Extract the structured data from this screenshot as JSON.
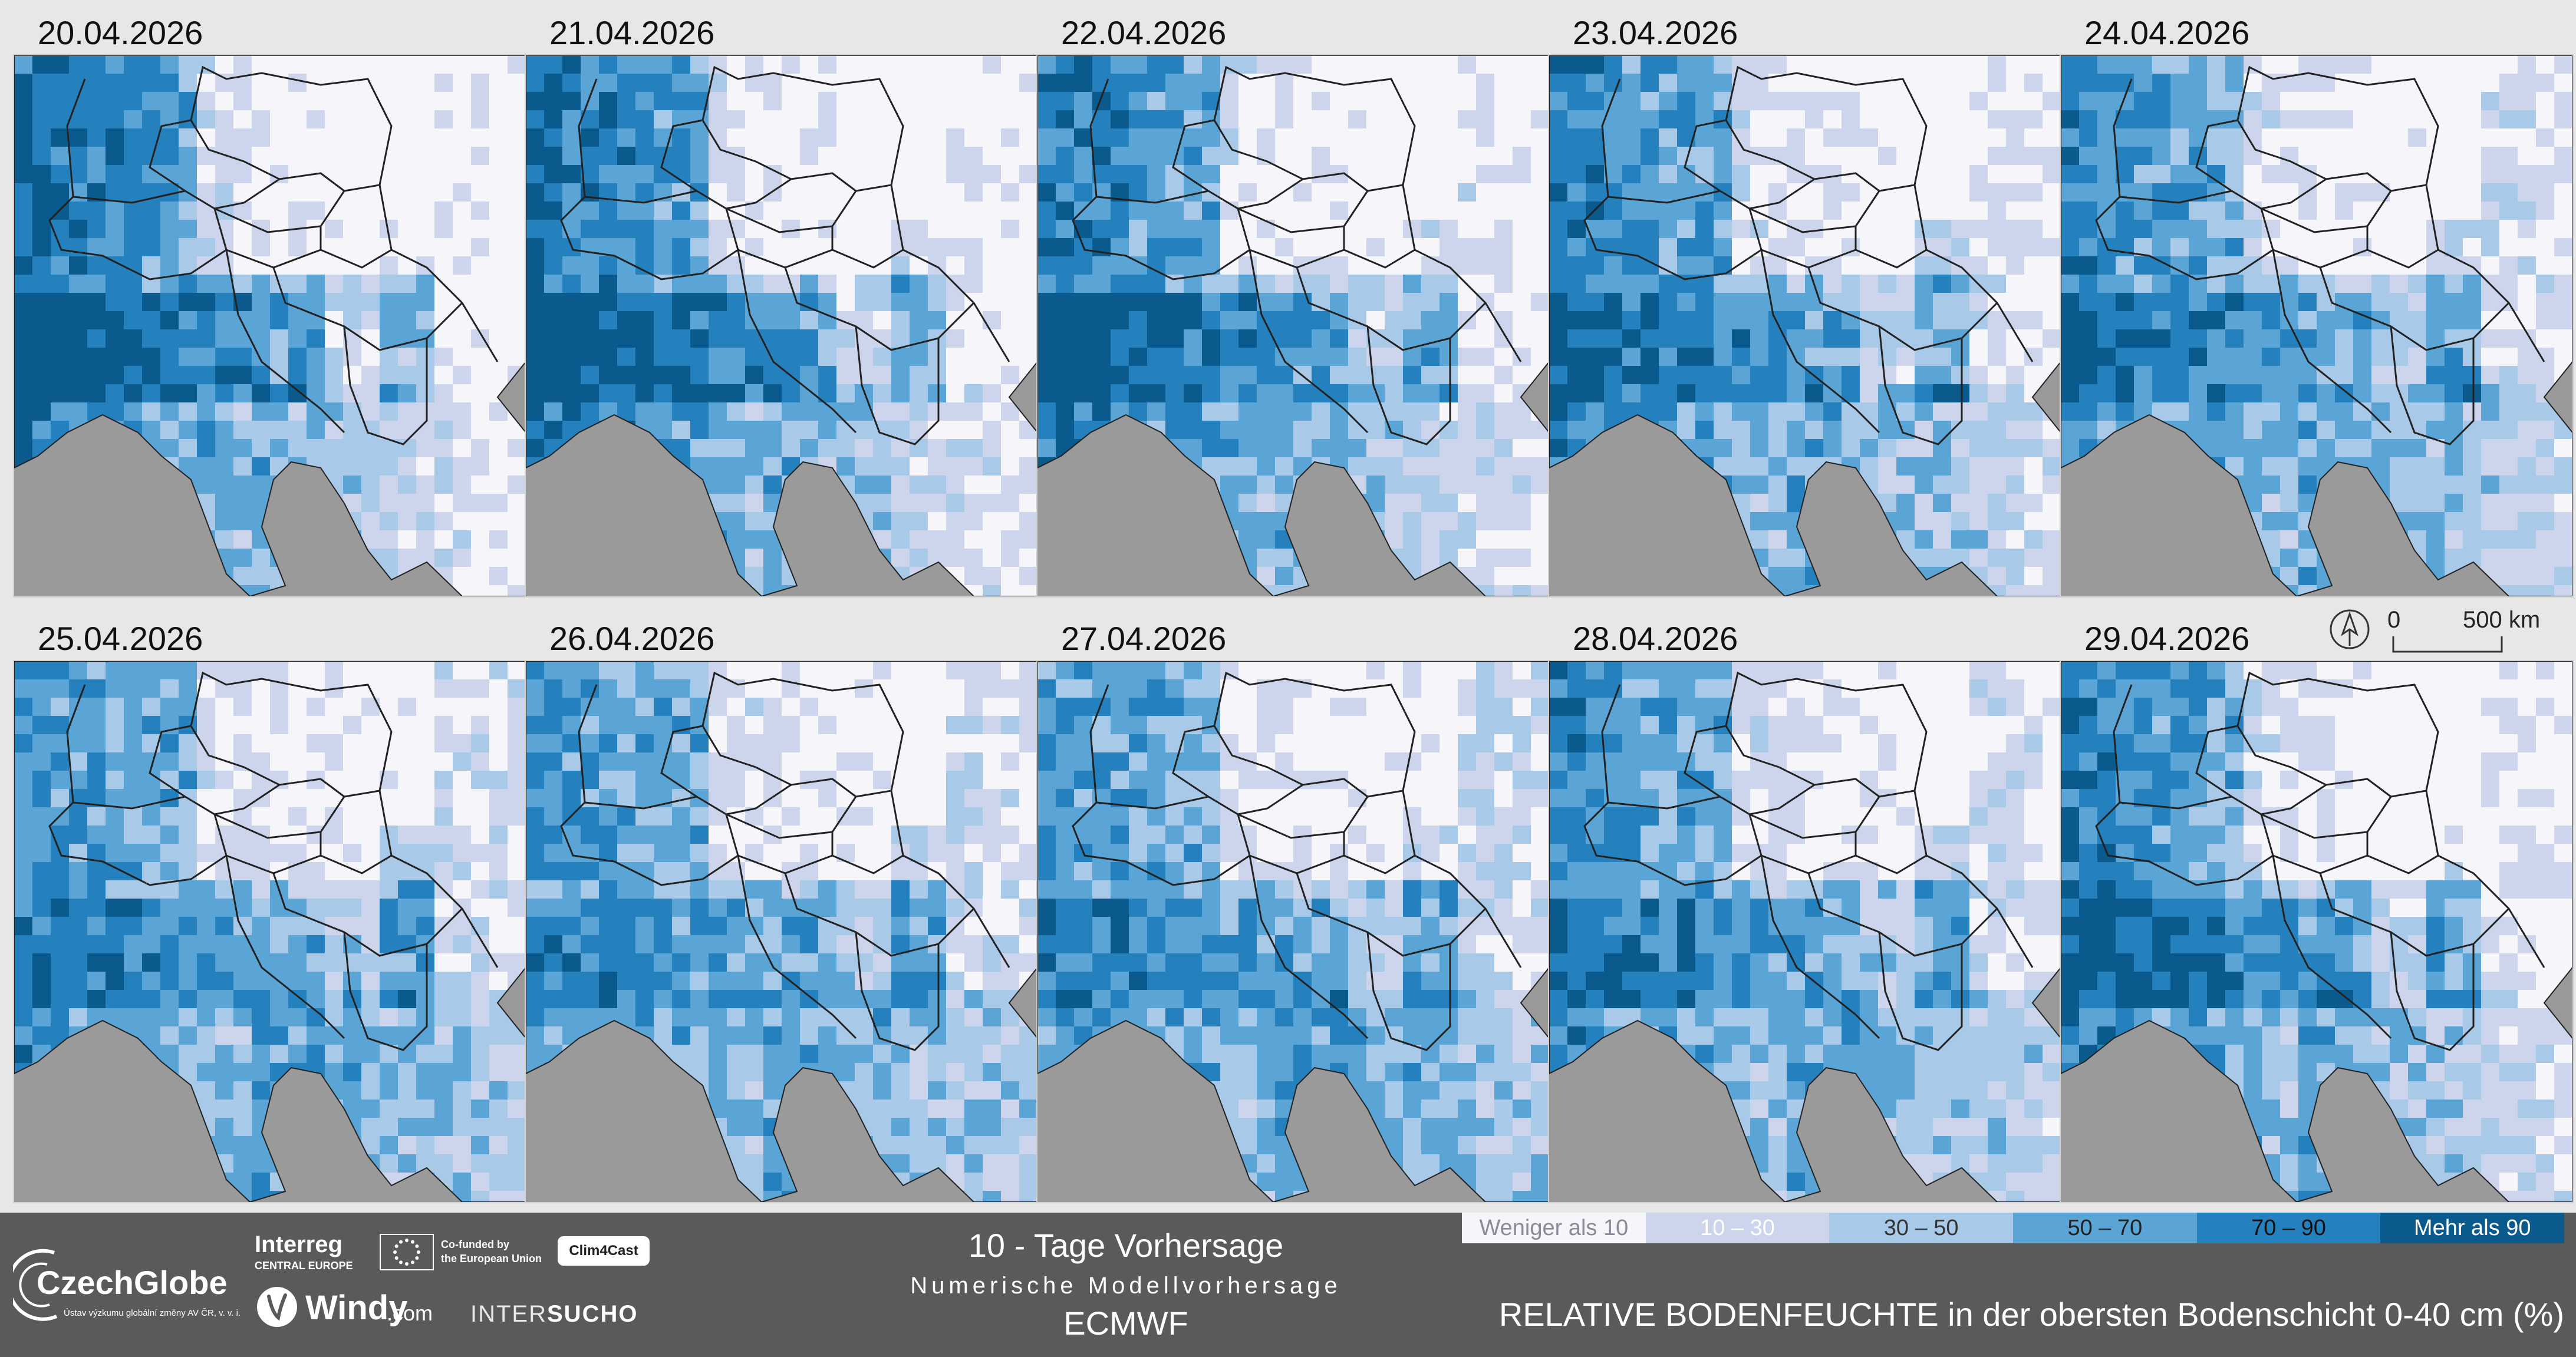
{
  "panels": [
    {
      "date": "20.04.2026",
      "wet": 0.95
    },
    {
      "date": "21.04.2026",
      "wet": 0.92
    },
    {
      "date": "22.04.2026",
      "wet": 0.85
    },
    {
      "date": "23.04.2026",
      "wet": 0.72
    },
    {
      "date": "24.04.2026",
      "wet": 0.65
    },
    {
      "date": "25.04.2026",
      "wet": 0.55
    },
    {
      "date": "26.04.2026",
      "wet": 0.52
    },
    {
      "date": "27.04.2026",
      "wet": 0.5
    },
    {
      "date": "28.04.2026",
      "wet": 0.62
    },
    {
      "date": "29.04.2026",
      "wet": 0.8
    }
  ],
  "scale": {
    "zero": "0",
    "distance": "500 km"
  },
  "footer": {
    "czechglobe_name": "CzechGlobe",
    "czechglobe_sub": "Ústav výzkumu globální změny AV ČR, v. v. i.",
    "interreg_name": "Interreg",
    "interreg_sub": "CENTRAL EUROPE",
    "eu_text_line1": "Co-funded by",
    "eu_text_line2": "the European Union",
    "clim4cast": "Clim4Cast",
    "windy_name": "Windy",
    "windy_suffix": ".com",
    "intersucho_a": "INTER",
    "intersucho_b": "SUCHO",
    "title": "10 - Tage Vorhersage",
    "subtitle": "Numerische Modellvorhersage",
    "model": "ECMWF",
    "variable": "RELATIVE BODENFEUCHTE in der obersten Bodenschicht 0-40 cm (%)"
  },
  "legend": [
    {
      "label": "Weniger als 10",
      "color": "#f5f5fa",
      "text_color": "#8a8a9a"
    },
    {
      "label": "10 – 30",
      "color": "#cdd5ec",
      "text_color": "#ffffff"
    },
    {
      "label": "30 – 50",
      "color": "#a8c9e7",
      "text_color": "#333333"
    },
    {
      "label": "50 – 70",
      "color": "#5aa5d6",
      "text_color": "#222222"
    },
    {
      "label": "70 – 90",
      "color": "#2581bd",
      "text_color": "#111111"
    },
    {
      "label": "Mehr als 90",
      "color": "#0a5a8e",
      "text_color": "#ffffff"
    }
  ],
  "colors": {
    "background": "#e7e7e7",
    "sea": "#9a9a9a",
    "footer": "#5a5a5a",
    "border_lines": "#222222"
  },
  "icons": {
    "north_arrow": "north-arrow-icon"
  }
}
